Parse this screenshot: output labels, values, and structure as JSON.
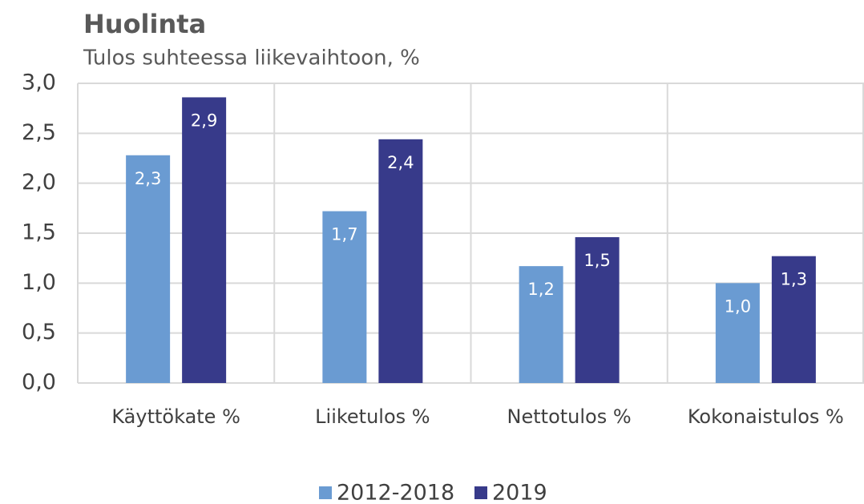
{
  "chart_data": {
    "type": "bar",
    "title": "Huolinta",
    "subtitle": "Tulos suhteessa liikevaihtoon, %",
    "categories": [
      "Käyttökate %",
      "Liiketulos %",
      "Nettotulos %",
      "Kokonaistulos %"
    ],
    "series": [
      {
        "name": "2012-2018",
        "color": "#6a9bd2",
        "values": [
          2.28,
          1.72,
          1.17,
          1.0
        ],
        "value_labels": [
          "2,3",
          "1,7",
          "1,2",
          "1,0"
        ]
      },
      {
        "name": "2019",
        "color": "#373a8a",
        "values": [
          2.86,
          2.44,
          1.46,
          1.27
        ],
        "value_labels": [
          "2,9",
          "2,4",
          "1,5",
          "1,3"
        ]
      }
    ],
    "ylim": [
      0,
      3
    ],
    "yticks": [
      {
        "value": 0,
        "label": "0,0"
      },
      {
        "value": 0.5,
        "label": "0,5"
      },
      {
        "value": 1,
        "label": "1,0"
      },
      {
        "value": 1.5,
        "label": "1,5"
      },
      {
        "value": 2,
        "label": "2,0"
      },
      {
        "value": 2.5,
        "label": "2,5"
      },
      {
        "value": 3,
        "label": "3,0"
      }
    ],
    "grid": true,
    "legend": "bottom"
  }
}
